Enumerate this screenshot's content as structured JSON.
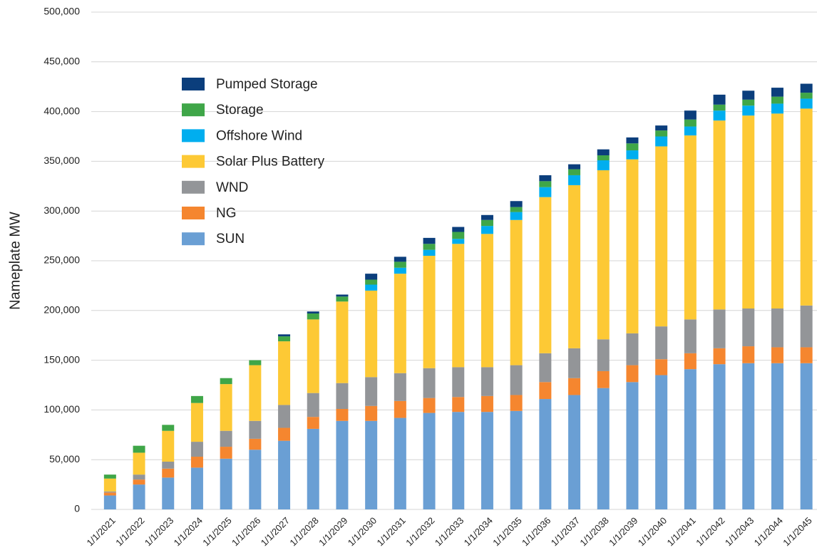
{
  "chart_data": {
    "type": "stacked_bar",
    "y_label": "Nameplate MW",
    "categories": [
      "1/1/2021",
      "1/1/2022",
      "1/1/2023",
      "1/1/2024",
      "1/1/2025",
      "1/1/2026",
      "1/1/2027",
      "1/1/2028",
      "1/1/2029",
      "1/1/2030",
      "1/1/2031",
      "1/1/2032",
      "1/1/2033",
      "1/1/2034",
      "1/1/2035",
      "1/1/2036",
      "1/1/2037",
      "1/1/2038",
      "1/1/2039",
      "1/1/2040",
      "1/1/2041",
      "1/1/2042",
      "1/1/2043",
      "1/1/2044",
      "1/1/2045"
    ],
    "series": [
      {
        "name": "SUN",
        "color": "#6a9fd4",
        "values": [
          14000,
          25000,
          32000,
          42000,
          51000,
          60000,
          69000,
          81000,
          89000,
          89000,
          92000,
          97000,
          98000,
          98000,
          99000,
          111000,
          115000,
          122000,
          128000,
          135000,
          141000,
          146000,
          147000,
          147000,
          147000
        ]
      },
      {
        "name": "NG",
        "color": "#f5862f",
        "values": [
          3000,
          5000,
          9000,
          11000,
          12000,
          11000,
          13000,
          12000,
          12000,
          15000,
          17000,
          15000,
          15000,
          16000,
          16000,
          17000,
          17000,
          17000,
          17000,
          16000,
          16000,
          16000,
          17000,
          16000,
          16000
        ]
      },
      {
        "name": "WND",
        "color": "#939598",
        "values": [
          1000,
          5000,
          7000,
          15000,
          16000,
          18000,
          23000,
          24000,
          26000,
          29000,
          28000,
          30000,
          30000,
          29000,
          30000,
          29000,
          30000,
          32000,
          32000,
          33000,
          34000,
          39000,
          38000,
          39000,
          42000
        ]
      },
      {
        "name": "Solar Plus Battery",
        "color": "#fdc935",
        "values": [
          13000,
          22000,
          31000,
          39000,
          47000,
          56000,
          64000,
          74000,
          82000,
          87000,
          100000,
          113000,
          124000,
          134000,
          146000,
          157000,
          164000,
          170000,
          175000,
          181000,
          185000,
          190000,
          194000,
          196000,
          198000
        ]
      },
      {
        "name": "Offshore Wind",
        "color": "#00aeef",
        "values": [
          0,
          0,
          0,
          0,
          0,
          0,
          0,
          0,
          0,
          6000,
          6000,
          6000,
          5000,
          8000,
          8000,
          10000,
          10000,
          10000,
          9000,
          10000,
          9000,
          10000,
          10000,
          10000,
          10000
        ]
      },
      {
        "name": "Storage",
        "color": "#3fa648",
        "values": [
          4000,
          7000,
          6000,
          7000,
          6000,
          5000,
          5000,
          6000,
          5000,
          5000,
          6000,
          6000,
          7000,
          6000,
          5000,
          6000,
          6000,
          5000,
          7000,
          6000,
          7000,
          6000,
          6000,
          7000,
          6000
        ]
      },
      {
        "name": "Pumped Storage",
        "color": "#0b3e7c",
        "values": [
          0,
          0,
          0,
          0,
          0,
          0,
          2000,
          2000,
          2000,
          6000,
          5000,
          6000,
          5000,
          5000,
          6000,
          6000,
          5000,
          6000,
          6000,
          5000,
          9000,
          10000,
          9000,
          9000,
          9000
        ]
      }
    ],
    "ylim": [
      0,
      500000
    ],
    "yticks": [
      0,
      {
        "value": 50000,
        "label": "50,000"
      },
      {
        "value": 100000,
        "label": "100,000"
      },
      {
        "value": 150000,
        "label": "150,000"
      },
      {
        "value": 200000,
        "label": "200,000"
      },
      {
        "value": 250000,
        "label": "250,000"
      },
      {
        "value": 300000,
        "label": "300,000"
      },
      {
        "value": 350000,
        "label": "350,000"
      },
      {
        "value": 400000,
        "label": "400,000"
      },
      {
        "value": 450000,
        "label": "450,000"
      },
      {
        "value": 500000,
        "label": "500,000"
      }
    ],
    "grid": true,
    "legend": "upper left"
  }
}
